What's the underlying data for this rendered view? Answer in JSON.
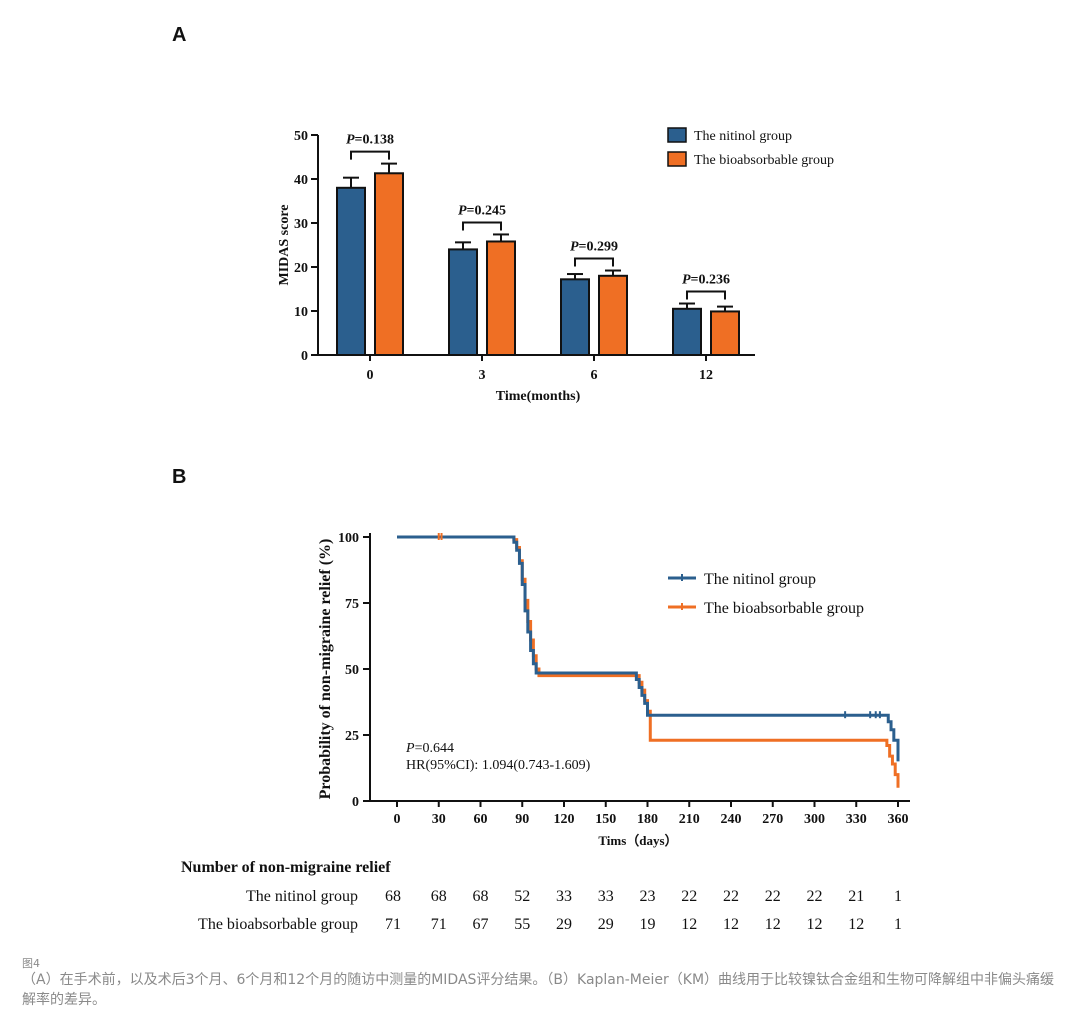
{
  "panel_a_label": "A",
  "panel_b_label": "B",
  "colors": {
    "nitinol": "#2b5f8e",
    "bioabsorbable": "#ef6f24"
  },
  "chart_data": [
    {
      "type": "bar",
      "xlabel": "Time(months)",
      "ylabel": "MIDAS score",
      "ylim": [
        0,
        50
      ],
      "yticks": [
        "0",
        "10",
        "20",
        "30",
        "40",
        "50"
      ],
      "categories": [
        "0",
        "3",
        "6",
        "12"
      ],
      "legend_position": "top-right",
      "series": [
        {
          "name": "The nitinol group",
          "values": [
            38,
            24,
            17.2,
            10.5
          ],
          "errors": [
            2.3,
            1.6,
            1.2,
            1.2
          ]
        },
        {
          "name": "The bioabsorbable group",
          "values": [
            41.3,
            25.8,
            18,
            9.9
          ],
          "errors": [
            2.2,
            1.6,
            1.2,
            1.1
          ]
        }
      ],
      "annotations": [
        {
          "prefix": "P",
          "text": "=0.138"
        },
        {
          "prefix": "P",
          "text": "=0.245"
        },
        {
          "prefix": "P",
          "text": "=0.299"
        },
        {
          "prefix": "P",
          "text": "=0.236"
        }
      ]
    },
    {
      "type": "line",
      "xlabel": "Tims（days）",
      "ylabel": "Probability of non-migraine relief (%)",
      "xlim": [
        0,
        360
      ],
      "ylim": [
        0,
        100
      ],
      "xticks": [
        "0",
        "30",
        "60",
        "90",
        "120",
        "150",
        "180",
        "210",
        "240",
        "270",
        "300",
        "330",
        "360"
      ],
      "yticks": [
        "0",
        "25",
        "50",
        "75",
        "100"
      ],
      "legend_position": "right",
      "series": [
        {
          "name": "The nitinol group",
          "x": [
            0,
            82,
            84,
            86,
            88,
            90,
            92,
            94,
            96,
            98,
            100,
            170,
            172,
            174,
            176,
            178,
            180,
            350,
            353,
            355,
            357,
            360
          ],
          "y": [
            100,
            100,
            98,
            95,
            90,
            82,
            72,
            64,
            57,
            52,
            48.5,
            48.5,
            46,
            43,
            40,
            37,
            32.5,
            32.5,
            30,
            27,
            23,
            15
          ]
        },
        {
          "name": "The bioabsorbable group",
          "x": [
            0,
            82,
            84,
            86,
            88,
            90,
            92,
            94,
            96,
            98,
            100,
            102,
            172,
            174,
            176,
            178,
            180,
            182,
            350,
            352,
            354,
            356,
            358,
            360
          ],
          "y": [
            100,
            100,
            99,
            96,
            91,
            84,
            76,
            68,
            61,
            55,
            50,
            47.5,
            47.5,
            45,
            42,
            38,
            34,
            23,
            23,
            21,
            17,
            14,
            10,
            5
          ]
        }
      ],
      "annotations": {
        "p_prefix": "P",
        "p_value": "=0.644",
        "hr": "HR(95%CI): 1.094(0.743-1.609)"
      }
    }
  ],
  "risk_table": {
    "title": "Number of non-migraine relief",
    "rows": [
      {
        "label": "The nitinol group",
        "values": [
          "68",
          "68",
          "68",
          "52",
          "33",
          "33",
          "23",
          "22",
          "22",
          "22",
          "22",
          "21",
          "1"
        ]
      },
      {
        "label": "The bioabsorbable group",
        "values": [
          "71",
          "71",
          "67",
          "55",
          "29",
          "29",
          "19",
          "12",
          "12",
          "12",
          "12",
          "12",
          "1"
        ]
      }
    ]
  },
  "caption": {
    "figure": "图4",
    "text": "（A）在手术前，以及术后3个月、6个月和12个月的随访中测量的MIDAS评分结果。（B）Kaplan-Meier（KM）曲线用于比较镍钛合金组和生物可降解组中非偏头痛缓解率的差异。"
  }
}
